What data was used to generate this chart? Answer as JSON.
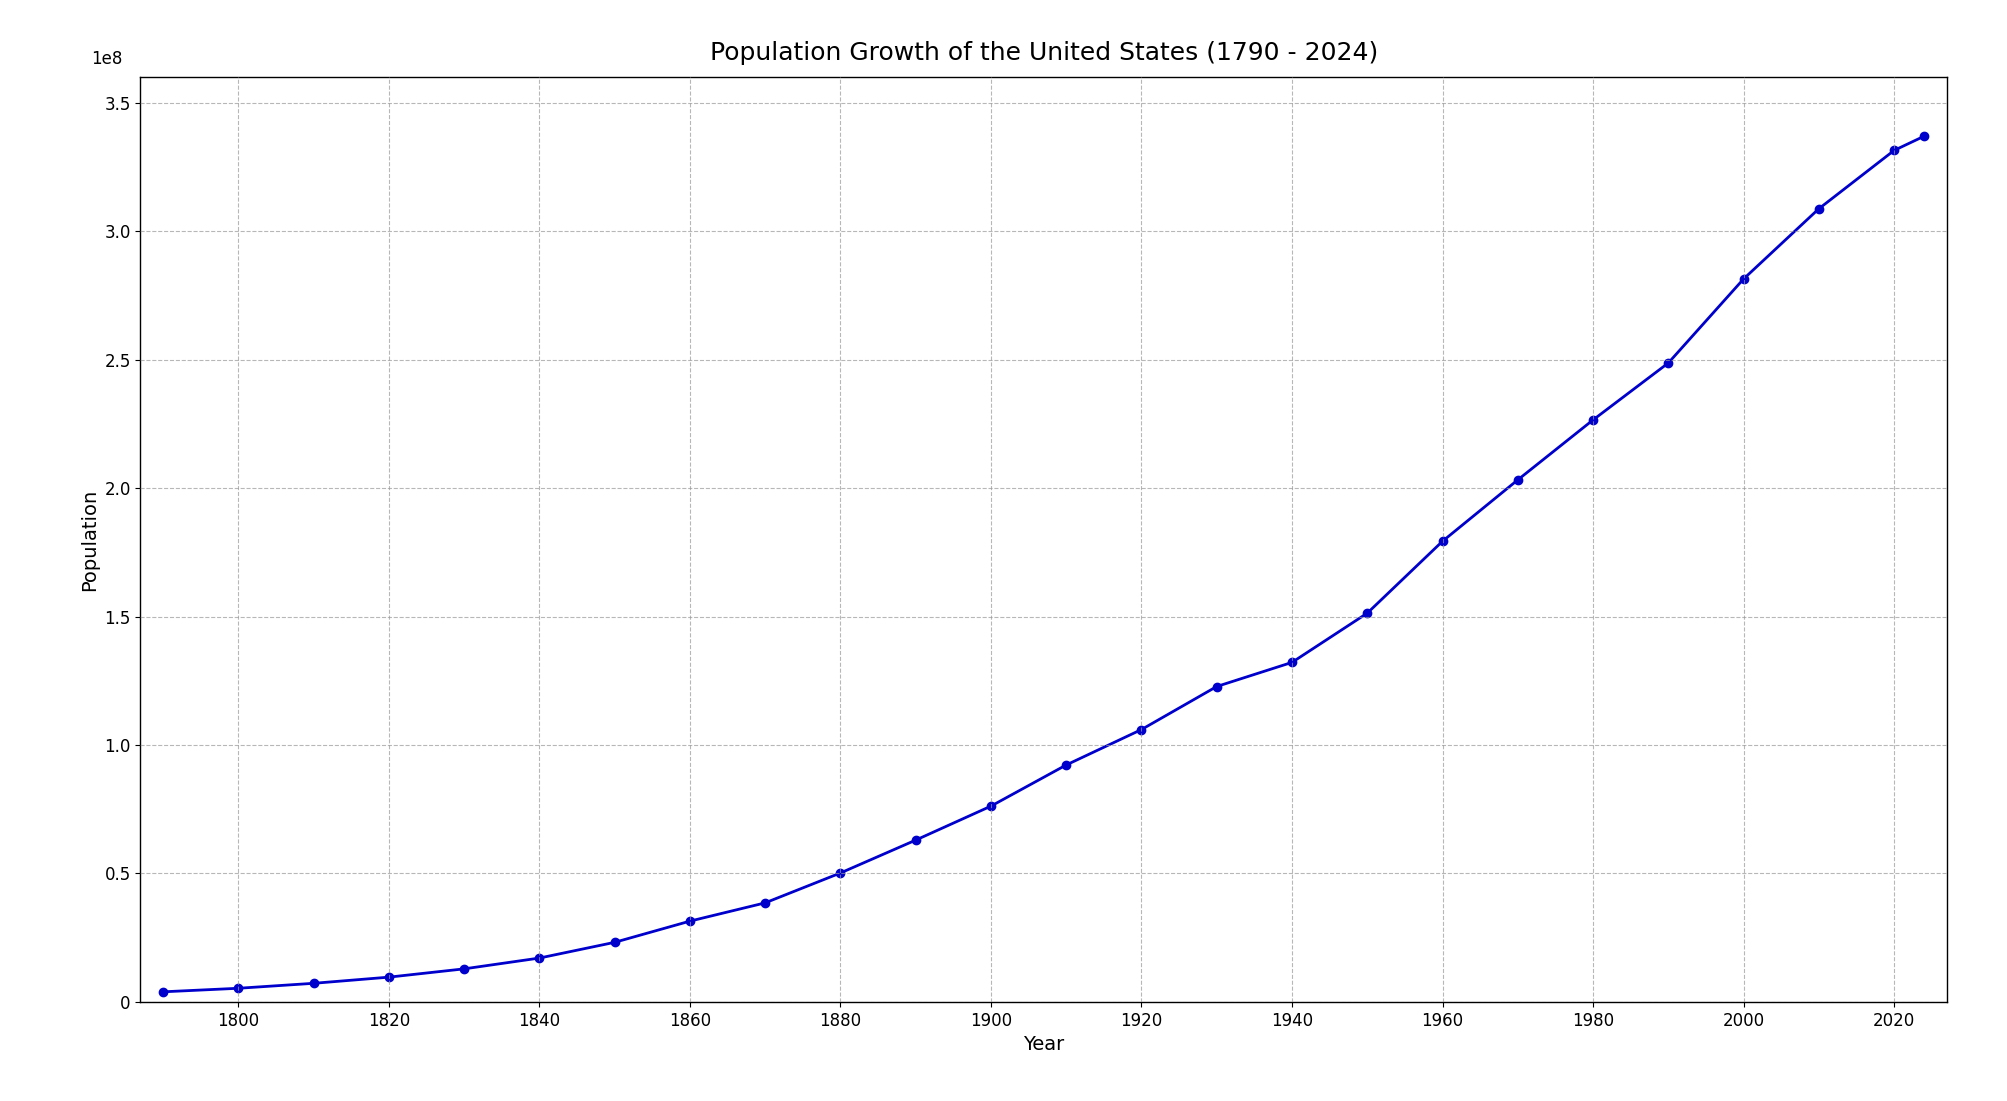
{
  "title": "Population Growth of the United States (1790 - 2024)",
  "xlabel": "Year",
  "ylabel": "Population",
  "line_color": "#0000CC",
  "marker_color": "#0000CC",
  "marker_style": "o",
  "marker_size": 6,
  "line_width": 2.0,
  "background_color": "#ffffff",
  "grid_color": "#999999",
  "years": [
    1790,
    1800,
    1810,
    1820,
    1830,
    1840,
    1850,
    1860,
    1870,
    1880,
    1890,
    1900,
    1910,
    1920,
    1930,
    1940,
    1950,
    1960,
    1970,
    1980,
    1990,
    2000,
    2010,
    2020,
    2024
  ],
  "population": [
    3929214,
    5308483,
    7239881,
    9638453,
    12866020,
    17069453,
    23191876,
    31443321,
    38558371,
    50189209,
    62979766,
    76212168,
    92228496,
    106021537,
    122775046,
    132164569,
    151325798,
    179323175,
    203211926,
    226545805,
    248709873,
    281421906,
    308745538,
    331449281,
    336997624
  ],
  "ylim": [
    0,
    360000000
  ],
  "xlim": [
    1787,
    2027
  ],
  "yticks": [
    0,
    50000000,
    100000000,
    150000000,
    200000000,
    250000000,
    300000000,
    350000000
  ],
  "ytick_labels": [
    "0",
    "0.5",
    "1.0",
    "1.5",
    "2.0",
    "2.5",
    "3.0",
    "3.5"
  ],
  "xticks": [
    1800,
    1820,
    1840,
    1860,
    1880,
    1900,
    1920,
    1940,
    1960,
    1980,
    2000,
    2020
  ],
  "title_fontsize": 18,
  "axis_label_fontsize": 14,
  "tick_fontsize": 12
}
